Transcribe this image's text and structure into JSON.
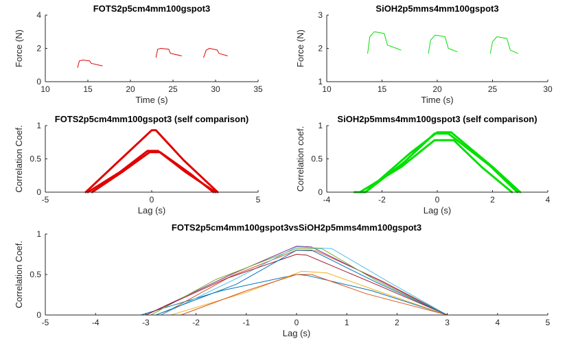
{
  "chart_data": [
    {
      "type": "line",
      "title": "FOTS2p5cm4mm100gspot3",
      "xlabel": "Time (s)",
      "ylabel": "Force (N)",
      "xlim": [
        10,
        35
      ],
      "ylim": [
        0,
        4
      ],
      "xticks": [
        10,
        15,
        20,
        25,
        30,
        35
      ],
      "yticks": [
        0,
        2,
        4
      ],
      "series": [
        {
          "color": "#e00000",
          "x": [
            13.8,
            14.0,
            14.4,
            15.2,
            15.4,
            16.7
          ],
          "y": [
            0.85,
            1.25,
            1.3,
            1.25,
            1.1,
            0.95
          ]
        },
        {
          "color": "#e00000",
          "x": [
            23.0,
            23.2,
            23.6,
            24.5,
            24.7,
            26.0
          ],
          "y": [
            1.45,
            1.95,
            2.0,
            1.95,
            1.7,
            1.55
          ]
        },
        {
          "color": "#e00000",
          "x": [
            28.6,
            28.9,
            29.3,
            30.2,
            30.4,
            31.4
          ],
          "y": [
            1.45,
            1.9,
            2.0,
            1.9,
            1.7,
            1.55
          ]
        }
      ]
    },
    {
      "type": "line",
      "title": "SiOH2p5mms4mm100gspot3",
      "xlabel": "Time (s)",
      "ylabel": "Force (N)",
      "xlim": [
        10,
        30
      ],
      "ylim": [
        1,
        3
      ],
      "xticks": [
        10,
        15,
        20,
        25,
        30
      ],
      "yticks": [
        1,
        2,
        3
      ],
      "series": [
        {
          "color": "#00e000",
          "x": [
            13.7,
            13.9,
            14.3,
            15.2,
            15.5,
            16.7
          ],
          "y": [
            1.85,
            2.35,
            2.5,
            2.45,
            2.1,
            1.95
          ]
        },
        {
          "color": "#00e000",
          "x": [
            19.2,
            19.4,
            19.8,
            20.7,
            21.0,
            21.8
          ],
          "y": [
            1.85,
            2.25,
            2.4,
            2.35,
            2.0,
            1.9
          ]
        },
        {
          "color": "#00e000",
          "x": [
            24.8,
            25.0,
            25.4,
            26.3,
            26.6,
            27.3
          ],
          "y": [
            1.85,
            2.2,
            2.35,
            2.3,
            1.95,
            1.85
          ]
        }
      ]
    },
    {
      "type": "line",
      "title": "FOTS2p5cm4mm100gspot3 (self comparison)",
      "xlabel": "Lag (s)",
      "ylabel": "Correlation Coef.",
      "xlim": [
        -5,
        5
      ],
      "ylim": [
        0,
        1
      ],
      "xticks": [
        -5,
        0,
        5
      ],
      "yticks": [
        0,
        0.5,
        1
      ],
      "series": [
        {
          "color": "#e00000",
          "x": [
            -3.1,
            -1.5,
            0,
            0.2,
            1.5,
            3.1
          ],
          "y": [
            0,
            0.48,
            0.93,
            0.93,
            0.48,
            0
          ]
        },
        {
          "color": "#e00000",
          "x": [
            -3.0,
            -1.5,
            -0.2,
            0.3,
            1.6,
            3.0
          ],
          "y": [
            0,
            0.3,
            0.62,
            0.62,
            0.3,
            0
          ]
        },
        {
          "color": "#e00000",
          "x": [
            -2.8,
            -1.4,
            -0.1,
            0.4,
            1.8,
            2.9
          ],
          "y": [
            0,
            0.3,
            0.6,
            0.6,
            0.28,
            0
          ]
        }
      ]
    },
    {
      "type": "line",
      "title": "SiOH2p5mms4mm100gspot3 (self comparison)",
      "xlabel": "Lag (s)",
      "ylabel": "Correlation coef.",
      "xlim": [
        -4,
        4
      ],
      "ylim": [
        0,
        1
      ],
      "xticks": [
        -4,
        -2,
        0,
        2,
        4
      ],
      "yticks": [
        0,
        0.5,
        1
      ],
      "series": [
        {
          "color": "#00e000",
          "x": [
            -3.0,
            -2.6,
            -1.0,
            0,
            0.5,
            2.0,
            3.0
          ],
          "y": [
            0,
            0,
            0.58,
            0.9,
            0.9,
            0.38,
            0
          ]
        },
        {
          "color": "#00e000",
          "x": [
            -2.6,
            -1.2,
            -0.1,
            0.4,
            1.9,
            2.9
          ],
          "y": [
            0,
            0.45,
            0.88,
            0.88,
            0.4,
            0
          ]
        },
        {
          "color": "#00e000",
          "x": [
            -2.8,
            -1.3,
            -0.1,
            0.6,
            1.6,
            2.7
          ],
          "y": [
            0,
            0.38,
            0.78,
            0.78,
            0.38,
            0
          ]
        }
      ]
    },
    {
      "type": "line",
      "title": "FOTS2p5cm4mm100gspot3vsSiOH2p5mms4mm100gspot3",
      "xlabel": "Lag (s)",
      "ylabel": "Correlation Coef.",
      "xlim": [
        -5,
        5
      ],
      "ylim": [
        0,
        1
      ],
      "xticks": [
        -5,
        -4,
        -3,
        -2,
        -1,
        0,
        1,
        2,
        3,
        4,
        5
      ],
      "yticks": [
        0,
        0.5,
        1
      ],
      "series": [
        {
          "color": "#0072bd",
          "x": [
            -3.1,
            -1.5,
            0,
            0.2,
            1.5,
            3.0
          ],
          "y": [
            0,
            0.3,
            0.5,
            0.49,
            0.3,
            0
          ]
        },
        {
          "color": "#d95319",
          "x": [
            -2.7,
            -1.3,
            0,
            0.4,
            1.7,
            3.0
          ],
          "y": [
            0,
            0.48,
            0.8,
            0.79,
            0.42,
            0
          ]
        },
        {
          "color": "#edb120",
          "x": [
            -2.5,
            -1.0,
            0.1,
            0.6,
            1.6,
            3.0
          ],
          "y": [
            0,
            0.28,
            0.54,
            0.52,
            0.3,
            0
          ]
        },
        {
          "color": "#7e2f8e",
          "x": [
            -3.0,
            -1.3,
            0,
            0.3,
            1.6,
            3.0
          ],
          "y": [
            0,
            0.5,
            0.85,
            0.84,
            0.44,
            0
          ]
        },
        {
          "color": "#77ac30",
          "x": [
            -2.9,
            -1.6,
            0,
            0.5,
            1.6,
            3.0
          ],
          "y": [
            0,
            0.44,
            0.82,
            0.82,
            0.42,
            0
          ]
        },
        {
          "color": "#4dbeee",
          "x": [
            -2.7,
            -1.2,
            0,
            0.7,
            1.8,
            3.0
          ],
          "y": [
            0,
            0.45,
            0.84,
            0.82,
            0.42,
            0
          ]
        },
        {
          "color": "#a2142f",
          "x": [
            -3.0,
            -1.4,
            0,
            0.2,
            1.5,
            3.0
          ],
          "y": [
            0,
            0.45,
            0.75,
            0.74,
            0.4,
            0
          ]
        },
        {
          "color": "#0072bd",
          "x": [
            -2.8,
            -1.2,
            0,
            0.3,
            1.6,
            3.0
          ],
          "y": [
            0,
            0.38,
            0.8,
            0.8,
            0.4,
            0
          ]
        },
        {
          "color": "#d95319",
          "x": [
            -2.3,
            -1.0,
            0,
            0.3,
            1.4,
            3.0
          ],
          "y": [
            0,
            0.3,
            0.5,
            0.5,
            0.26,
            0
          ]
        }
      ]
    }
  ]
}
